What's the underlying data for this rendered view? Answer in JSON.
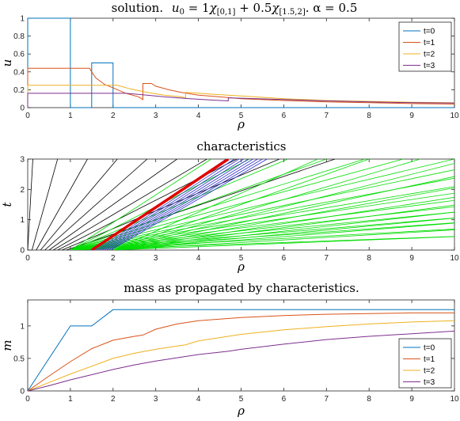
{
  "chart_data": [
    {
      "type": "line",
      "title": "solution.",
      "title_math": {
        "u0": "u",
        "u0_sub": "0",
        "eq": " = 1",
        "chi1": "χ",
        "chi1_sub": "[0,1]",
        "plus": " + 0.5",
        "chi2": "χ",
        "chi2_sub": "[1.5,2]",
        "tail": ".  α = 0.5"
      },
      "xlabel": "ρ",
      "ylabel": "u",
      "xlim": [
        0,
        10
      ],
      "ylim": [
        0,
        1
      ],
      "xticks": [
        "0",
        "1",
        "2",
        "3",
        "4",
        "5",
        "6",
        "7",
        "8",
        "9",
        "10"
      ],
      "yticks": [
        "0",
        "0.2",
        "0.4",
        "0.6",
        "0.8",
        "1"
      ],
      "legend": "top-right",
      "series": [
        {
          "name": "t=0",
          "color": "#0072BD",
          "points": [
            [
              0,
              0
            ],
            [
              0,
              1
            ],
            [
              1,
              1
            ],
            [
              1,
              0
            ],
            [
              1.5,
              0
            ],
            [
              1.5,
              0.5
            ],
            [
              2,
              0.5
            ],
            [
              2,
              0
            ],
            [
              10,
              0
            ]
          ]
        },
        {
          "name": "t=1",
          "color": "#D95319",
          "points": [
            [
              0,
              0
            ],
            [
              0,
              0.44
            ],
            [
              1.45,
              0.44
            ],
            [
              1.5,
              0.4
            ],
            [
              1.6,
              0.33
            ],
            [
              1.8,
              0.26
            ],
            [
              2,
              0.22
            ],
            [
              2.3,
              0.16
            ],
            [
              2.6,
              0.12
            ],
            [
              2.7,
              0.09
            ],
            [
              2.7,
              0.27
            ],
            [
              2.9,
              0.27
            ],
            [
              3,
              0.24
            ],
            [
              3.3,
              0.2
            ],
            [
              3.6,
              0.17
            ],
            [
              4,
              0.14
            ],
            [
              4.5,
              0.12
            ],
            [
              5,
              0.1
            ],
            [
              6,
              0.08
            ],
            [
              7,
              0.065
            ],
            [
              8,
              0.055
            ],
            [
              9,
              0.045
            ],
            [
              10,
              0.04
            ]
          ]
        },
        {
          "name": "t=2",
          "color": "#EDB120",
          "points": [
            [
              0,
              0
            ],
            [
              0,
              0.25
            ],
            [
              2.1,
              0.25
            ],
            [
              2.4,
              0.21
            ],
            [
              2.8,
              0.17
            ],
            [
              3.2,
              0.14
            ],
            [
              3.6,
              0.12
            ],
            [
              3.7,
              0.11
            ],
            [
              3.7,
              0.17
            ],
            [
              3.9,
              0.165
            ],
            [
              4.3,
              0.15
            ],
            [
              5,
              0.13
            ],
            [
              6,
              0.1
            ],
            [
              7,
              0.08
            ],
            [
              8,
              0.07
            ],
            [
              9,
              0.06
            ],
            [
              10,
              0.055
            ]
          ]
        },
        {
          "name": "t=3",
          "color": "#7E2F8E",
          "points": [
            [
              0,
              0
            ],
            [
              0,
              0.16
            ],
            [
              2.3,
              0.16
            ],
            [
              2.8,
              0.14
            ],
            [
              3.2,
              0.12
            ],
            [
              3.8,
              0.1
            ],
            [
              4.3,
              0.085
            ],
            [
              4.7,
              0.075
            ],
            [
              4.7,
              0.11
            ],
            [
              5,
              0.105
            ],
            [
              6,
              0.09
            ],
            [
              7,
              0.075
            ],
            [
              8,
              0.065
            ],
            [
              9,
              0.055
            ],
            [
              10,
              0.05
            ]
          ]
        }
      ]
    },
    {
      "type": "line",
      "title": "characteristics",
      "xlabel": "ρ",
      "ylabel": "t",
      "xlim": [
        0,
        10
      ],
      "ylim": [
        0,
        3
      ],
      "xticks": [
        "0",
        "1",
        "2",
        "3",
        "4",
        "5",
        "6",
        "7",
        "8",
        "9",
        "10"
      ],
      "yticks": [
        "0",
        "1",
        "2",
        "3"
      ],
      "shock": {
        "color": "#E00000",
        "from": [
          1.5,
          0
        ],
        "to": [
          4.7,
          3
        ]
      },
      "families": [
        {
          "color": "#000000",
          "x0": [
            0,
            0.1,
            0.2,
            0.3,
            0.4,
            0.5,
            0.6,
            0.7,
            0.8,
            0.9
          ],
          "slope": [
            0.04,
            0.2,
            0.4,
            0.6,
            0.8,
            1.0,
            1.2,
            1.4,
            1.7,
            2.1
          ]
        },
        {
          "color": "#00DD00",
          "x0": [
            1,
            1,
            1,
            1,
            1,
            1,
            1,
            1,
            1,
            1,
            1,
            1,
            1,
            1,
            1,
            1,
            1,
            1
          ],
          "slope": [
            1.1,
            1.4,
            1.7,
            2.0,
            2.3,
            2.6,
            3.0,
            3.4,
            3.8,
            4.3,
            4.8,
            5.5,
            6.3,
            7.2,
            8.5,
            10,
            13,
            20
          ]
        },
        {
          "color": "#3030CC",
          "x0": [
            1.5,
            1.55,
            1.6,
            1.65,
            1.7,
            1.75,
            1.8,
            1.85,
            1.9,
            1.95
          ],
          "slope": [
            1.05,
            1.05,
            1.08,
            1.1,
            1.12,
            1.14,
            1.16,
            1.18,
            1.2,
            1.22
          ]
        },
        {
          "color": "#00DD00",
          "x0": [
            2,
            2,
            2,
            2,
            2,
            2,
            2,
            2,
            2,
            2,
            2,
            2,
            2
          ],
          "slope": [
            1.6,
            2.0,
            2.4,
            2.8,
            3.3,
            3.9,
            4.6,
            5.4,
            6.4,
            7.6,
            9,
            12,
            18
          ]
        }
      ]
    },
    {
      "type": "line",
      "title": "mass as propagated by characteristics.",
      "xlabel": "ρ",
      "ylabel": "m",
      "xlim": [
        0,
        10
      ],
      "ylim": [
        0,
        1.4
      ],
      "xticks": [
        "0",
        "1",
        "2",
        "3",
        "4",
        "5",
        "6",
        "7",
        "8",
        "9",
        "10"
      ],
      "yticks": [
        "0",
        "0.5",
        "1"
      ],
      "legend": "bottom-right",
      "series": [
        {
          "name": "t=0",
          "color": "#0072BD",
          "points": [
            [
              0,
              0
            ],
            [
              1,
              1
            ],
            [
              1.5,
              1
            ],
            [
              2,
              1.25
            ],
            [
              10,
              1.25
            ]
          ]
        },
        {
          "name": "t=1",
          "color": "#D95319",
          "points": [
            [
              0,
              0
            ],
            [
              0.5,
              0.23
            ],
            [
              1,
              0.45
            ],
            [
              1.5,
              0.65
            ],
            [
              2,
              0.78
            ],
            [
              2.5,
              0.84
            ],
            [
              2.7,
              0.86
            ],
            [
              3,
              0.95
            ],
            [
              3.5,
              1.03
            ],
            [
              4,
              1.08
            ],
            [
              5,
              1.13
            ],
            [
              6,
              1.16
            ],
            [
              7,
              1.18
            ],
            [
              8,
              1.19
            ],
            [
              9,
              1.2
            ],
            [
              10,
              1.2
            ]
          ]
        },
        {
          "name": "t=2",
          "color": "#EDB120",
          "points": [
            [
              0,
              0
            ],
            [
              0.5,
              0.13
            ],
            [
              1,
              0.26
            ],
            [
              1.5,
              0.38
            ],
            [
              2,
              0.5
            ],
            [
              2.5,
              0.58
            ],
            [
              3,
              0.64
            ],
            [
              3.5,
              0.69
            ],
            [
              3.7,
              0.71
            ],
            [
              4,
              0.77
            ],
            [
              5,
              0.87
            ],
            [
              6,
              0.94
            ],
            [
              7,
              0.99
            ],
            [
              8,
              1.03
            ],
            [
              9,
              1.06
            ],
            [
              10,
              1.08
            ]
          ]
        },
        {
          "name": "t=3",
          "color": "#7E2F8E",
          "points": [
            [
              0,
              0
            ],
            [
              0.5,
              0.08
            ],
            [
              1,
              0.17
            ],
            [
              1.5,
              0.25
            ],
            [
              2,
              0.33
            ],
            [
              2.5,
              0.4
            ],
            [
              3,
              0.46
            ],
            [
              3.5,
              0.51
            ],
            [
              4,
              0.56
            ],
            [
              4.7,
              0.61
            ],
            [
              5,
              0.64
            ],
            [
              6,
              0.72
            ],
            [
              7,
              0.79
            ],
            [
              8,
              0.84
            ],
            [
              9,
              0.88
            ],
            [
              10,
              0.92
            ]
          ]
        }
      ]
    }
  ]
}
